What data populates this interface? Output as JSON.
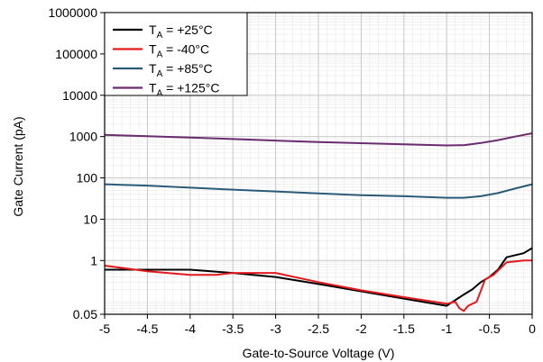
{
  "chart_data": {
    "type": "line",
    "xlabel": "Gate-to-Source Voltage (V)",
    "ylabel": "Gate Current (pA)",
    "xlim": [
      -5,
      0
    ],
    "ylim": [
      0.05,
      1000000
    ],
    "y_scale": "log",
    "grid": true,
    "legend_position": "top-left",
    "x_ticks": [
      -5,
      -4.5,
      -4,
      -3.5,
      -3,
      -2.5,
      -2,
      -1.5,
      -1,
      -0.5,
      0
    ],
    "x_tick_labels": [
      "-5",
      "-4.5",
      "-4",
      "-3.5",
      "-3",
      "-2.5",
      "-2",
      "-1.5",
      "-1",
      "-0.5",
      "0"
    ],
    "y_ticks": [
      0.05,
      1,
      10,
      100,
      1000,
      10000,
      100000,
      1000000
    ],
    "y_tick_labels": [
      "0.05",
      "1",
      "10",
      "100",
      "1000",
      "10000",
      "100000",
      "1000000"
    ],
    "series": [
      {
        "name": "TA = +25°C",
        "label_main": "T",
        "label_sub": "A",
        "label_rest": " = +25°C",
        "color": "#000000",
        "x": [
          -5,
          -4.5,
          -4,
          -3.5,
          -3,
          -2.5,
          -2,
          -1.5,
          -1,
          -0.9,
          -0.8,
          -0.7,
          -0.6,
          -0.5,
          -0.4,
          -0.3,
          -0.1,
          0
        ],
        "y": [
          0.6,
          0.6,
          0.6,
          0.5,
          0.4,
          0.27,
          0.18,
          0.12,
          0.08,
          0.11,
          0.15,
          0.2,
          0.3,
          0.4,
          0.6,
          1.2,
          1.5,
          2.0
        ]
      },
      {
        "name": "TA = -40°C",
        "label_main": "T",
        "label_sub": "A",
        "label_rest": " = -40°C",
        "color": "#e31a1c",
        "x": [
          -5,
          -4.5,
          -4,
          -3.7,
          -3.5,
          -3,
          -2.5,
          -2,
          -1.5,
          -1,
          -0.9,
          -0.85,
          -0.8,
          -0.75,
          -0.65,
          -0.55,
          -0.45,
          -0.3,
          -0.1,
          0
        ],
        "y": [
          0.75,
          0.55,
          0.45,
          0.45,
          0.5,
          0.5,
          0.3,
          0.19,
          0.13,
          0.09,
          0.1,
          0.07,
          0.06,
          0.08,
          0.1,
          0.35,
          0.45,
          0.9,
          1.0,
          1.0
        ]
      },
      {
        "name": "TA = +85°C",
        "label_main": "T",
        "label_sub": "A",
        "label_rest": " = +85°C",
        "color": "#2b5a78",
        "x": [
          -5,
          -4.5,
          -4,
          -3.5,
          -3,
          -2.5,
          -2,
          -1.5,
          -1,
          -0.8,
          -0.6,
          -0.4,
          -0.2,
          0
        ],
        "y": [
          70,
          65,
          58,
          52,
          47,
          42,
          38,
          36,
          33,
          33,
          36,
          43,
          55,
          70
        ]
      },
      {
        "name": "TA = +125°C",
        "label_main": "T",
        "label_sub": "A",
        "label_rest": " = +125°C",
        "color": "#6a2c6e",
        "x": [
          -5,
          -4.5,
          -4,
          -3.5,
          -3,
          -2.5,
          -2,
          -1.5,
          -1,
          -0.8,
          -0.6,
          -0.4,
          -0.2,
          0
        ],
        "y": [
          1100,
          1020,
          950,
          870,
          800,
          740,
          690,
          650,
          610,
          620,
          700,
          820,
          1000,
          1200
        ]
      }
    ]
  }
}
